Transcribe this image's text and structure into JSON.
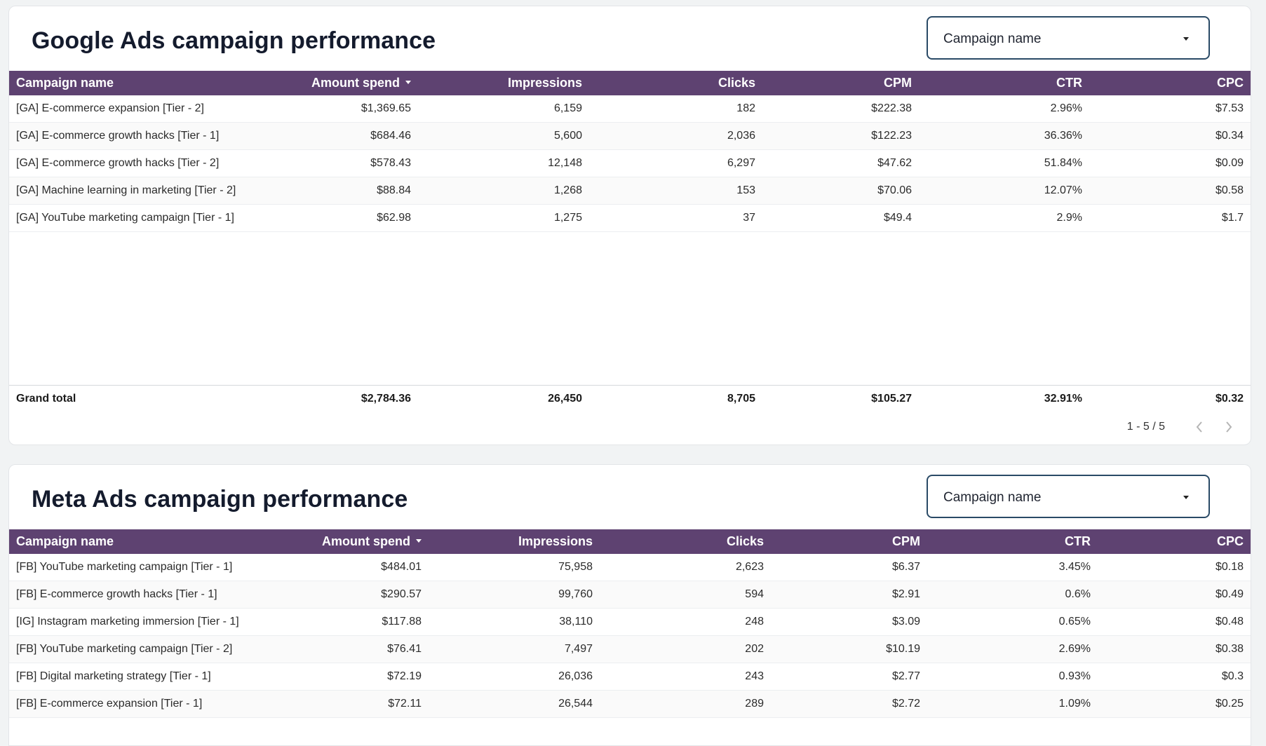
{
  "google": {
    "title": "Google Ads campaign performance",
    "filter_label": "Campaign name",
    "columns": [
      "Campaign name",
      "Amount spend",
      "Impressions",
      "Clicks",
      "CPM",
      "CTR",
      "CPC"
    ],
    "rows": [
      {
        "name": "[GA] E-commerce expansion [Tier - 2]",
        "spend": "$1,369.65",
        "impressions": "6,159",
        "clicks": "182",
        "cpm": "$222.38",
        "ctr": "2.96%",
        "cpc": "$7.53"
      },
      {
        "name": "[GA] E-commerce growth hacks [Tier - 1]",
        "spend": "$684.46",
        "impressions": "5,600",
        "clicks": "2,036",
        "cpm": "$122.23",
        "ctr": "36.36%",
        "cpc": "$0.34"
      },
      {
        "name": "[GA] E-commerce growth hacks [Tier - 2]",
        "spend": "$578.43",
        "impressions": "12,148",
        "clicks": "6,297",
        "cpm": "$47.62",
        "ctr": "51.84%",
        "cpc": "$0.09"
      },
      {
        "name": "[GA] Machine learning in marketing [Tier - 2]",
        "spend": "$88.84",
        "impressions": "1,268",
        "clicks": "153",
        "cpm": "$70.06",
        "ctr": "12.07%",
        "cpc": "$0.58"
      },
      {
        "name": "[GA] YouTube marketing campaign [Tier - 1]",
        "spend": "$62.98",
        "impressions": "1,275",
        "clicks": "37",
        "cpm": "$49.4",
        "ctr": "2.9%",
        "cpc": "$1.7"
      }
    ],
    "totals": {
      "label": "Grand total",
      "spend": "$2,784.36",
      "impressions": "26,450",
      "clicks": "8,705",
      "cpm": "$105.27",
      "ctr": "32.91%",
      "cpc": "$0.32"
    },
    "pagination": "1 - 5 / 5"
  },
  "meta": {
    "title": "Meta Ads campaign performance",
    "filter_label": "Campaign name",
    "columns": [
      "Campaign name",
      "Amount spend",
      "Impressions",
      "Clicks",
      "CPM",
      "CTR",
      "CPC"
    ],
    "rows": [
      {
        "name": "[FB] YouTube marketing campaign [Tier - 1]",
        "spend": "$484.01",
        "impressions": "75,958",
        "clicks": "2,623",
        "cpm": "$6.37",
        "ctr": "3.45%",
        "cpc": "$0.18"
      },
      {
        "name": "[FB] E-commerce growth hacks [Tier - 1]",
        "spend": "$290.57",
        "impressions": "99,760",
        "clicks": "594",
        "cpm": "$2.91",
        "ctr": "0.6%",
        "cpc": "$0.49"
      },
      {
        "name": "[IG] Instagram marketing immersion [Tier - 1]",
        "spend": "$117.88",
        "impressions": "38,110",
        "clicks": "248",
        "cpm": "$3.09",
        "ctr": "0.65%",
        "cpc": "$0.48"
      },
      {
        "name": "[FB] YouTube marketing campaign [Tier - 2]",
        "spend": "$76.41",
        "impressions": "7,497",
        "clicks": "202",
        "cpm": "$10.19",
        "ctr": "2.69%",
        "cpc": "$0.38"
      },
      {
        "name": "[FB] Digital marketing strategy [Tier - 1]",
        "spend": "$72.19",
        "impressions": "26,036",
        "clicks": "243",
        "cpm": "$2.77",
        "ctr": "0.93%",
        "cpc": "$0.3"
      },
      {
        "name": "[FB] E-commerce expansion [Tier - 1]",
        "spend": "$72.11",
        "impressions": "26,544",
        "clicks": "289",
        "cpm": "$2.72",
        "ctr": "1.09%",
        "cpc": "$0.25"
      }
    ]
  },
  "colors": {
    "header_bg": "#5e4271",
    "filter_border": "#2a4a66",
    "title": "#141b2d"
  },
  "icons": {
    "dropdown": "chevron-down-icon",
    "sort": "sort-desc-icon",
    "prev": "chevron-left-icon",
    "next": "chevron-right-icon"
  }
}
